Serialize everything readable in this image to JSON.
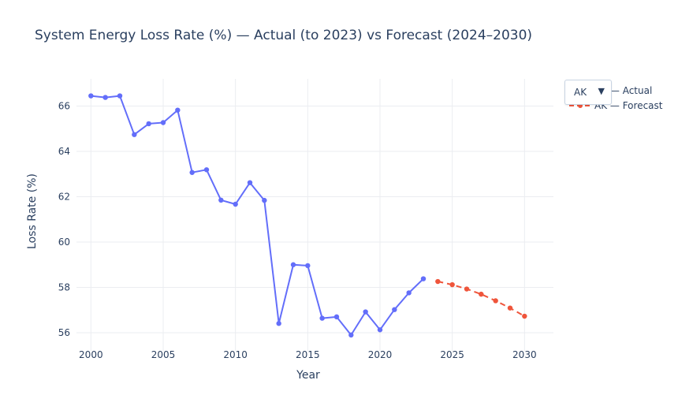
{
  "chart_data": {
    "type": "line",
    "title": "System Energy Loss Rate (%) — Actual (to 2023) vs Forecast (2024–2030)",
    "xlabel": "Year",
    "ylabel": "Loss Rate (%)",
    "xlim": [
      1999,
      2032
    ],
    "ylim": [
      55.2,
      67.2
    ],
    "x_ticks": [
      2000,
      2005,
      2010,
      2015,
      2020,
      2025,
      2030
    ],
    "y_ticks": [
      56,
      58,
      60,
      62,
      64,
      66
    ],
    "grid": true,
    "legend_position": "top-right",
    "series": [
      {
        "name": "AK — Actual",
        "color": "#636efa",
        "dash": "solid",
        "x": [
          2000,
          2001,
          2002,
          2003,
          2004,
          2005,
          2006,
          2007,
          2008,
          2009,
          2010,
          2011,
          2012,
          2013,
          2014,
          2015,
          2016,
          2017,
          2018,
          2019,
          2020,
          2021,
          2022,
          2023
        ],
        "y": [
          66.45,
          66.38,
          66.45,
          64.74,
          65.22,
          65.27,
          65.82,
          63.07,
          63.19,
          61.85,
          61.67,
          62.62,
          61.84,
          56.41,
          59.0,
          58.96,
          56.64,
          56.7,
          55.9,
          56.92,
          56.13,
          57.02,
          57.76,
          58.38
        ]
      },
      {
        "name": "AK — Forecast",
        "color": "#ef553b",
        "dash": "dash",
        "x": [
          2024,
          2025,
          2026,
          2027,
          2028,
          2029,
          2030
        ],
        "y": [
          58.26,
          58.12,
          57.93,
          57.7,
          57.41,
          57.09,
          56.73
        ]
      }
    ]
  },
  "dropdown": {
    "value": "AK",
    "arrow": "▼"
  }
}
